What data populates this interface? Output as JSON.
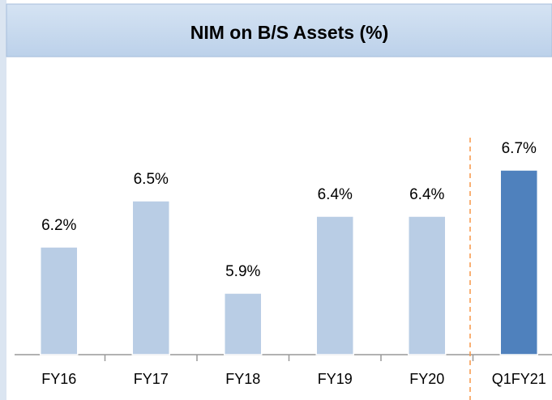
{
  "chart_data": {
    "type": "bar",
    "title": "NIM on B/S Assets (%)",
    "categories": [
      "FY16",
      "FY17",
      "FY18",
      "FY19",
      "FY20",
      "Q1FY21"
    ],
    "values": [
      6.2,
      6.5,
      5.9,
      6.4,
      6.4,
      6.7
    ],
    "value_labels": [
      "6.2%",
      "6.5%",
      "5.9%",
      "6.4%",
      "6.4%",
      "6.7%"
    ],
    "colors": [
      "#b9cde5",
      "#b9cde5",
      "#b9cde5",
      "#b9cde5",
      "#b9cde5",
      "#4f81bd"
    ],
    "ylim": [
      5.5,
      7.0
    ]
  }
}
